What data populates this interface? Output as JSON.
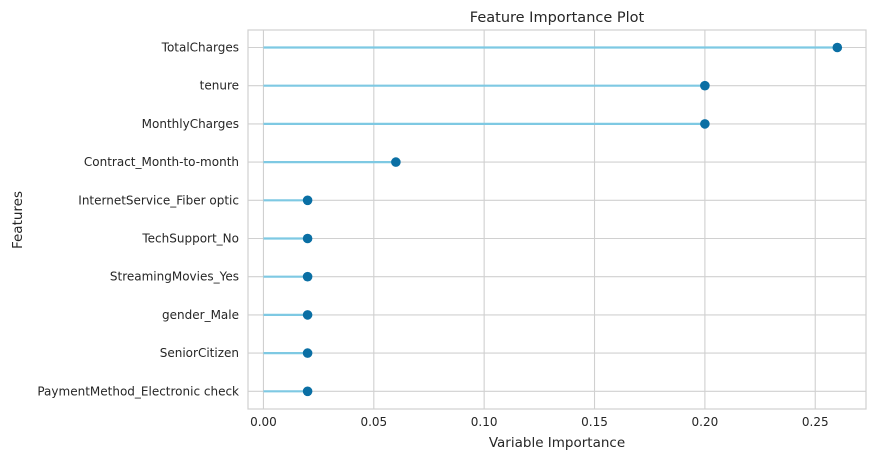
{
  "colors": {
    "background": "#ffffff",
    "grid": "#d0d0d0",
    "stem": "#7ec9e3",
    "marker": "#0a6fa4",
    "text": "#262626"
  },
  "chart_data": {
    "type": "lollipop",
    "title": "Feature Importance Plot",
    "xlabel": "Variable Importance",
    "ylabel": "Features",
    "xlim": [
      -0.007,
      0.273
    ],
    "xticks": [
      0.0,
      0.05,
      0.1,
      0.15,
      0.2,
      0.25
    ],
    "xtick_labels": [
      "0.00",
      "0.05",
      "0.10",
      "0.15",
      "0.20",
      "0.25"
    ],
    "grid": true,
    "categories": [
      "TotalCharges",
      "tenure",
      "MonthlyCharges",
      "Contract_Month-to-month",
      "InternetService_Fiber optic",
      "TechSupport_No",
      "StreamingMovies_Yes",
      "gender_Male",
      "SeniorCitizen",
      "PaymentMethod_Electronic check"
    ],
    "values": [
      0.26,
      0.2,
      0.2,
      0.06,
      0.02,
      0.02,
      0.02,
      0.02,
      0.02,
      0.02
    ]
  }
}
